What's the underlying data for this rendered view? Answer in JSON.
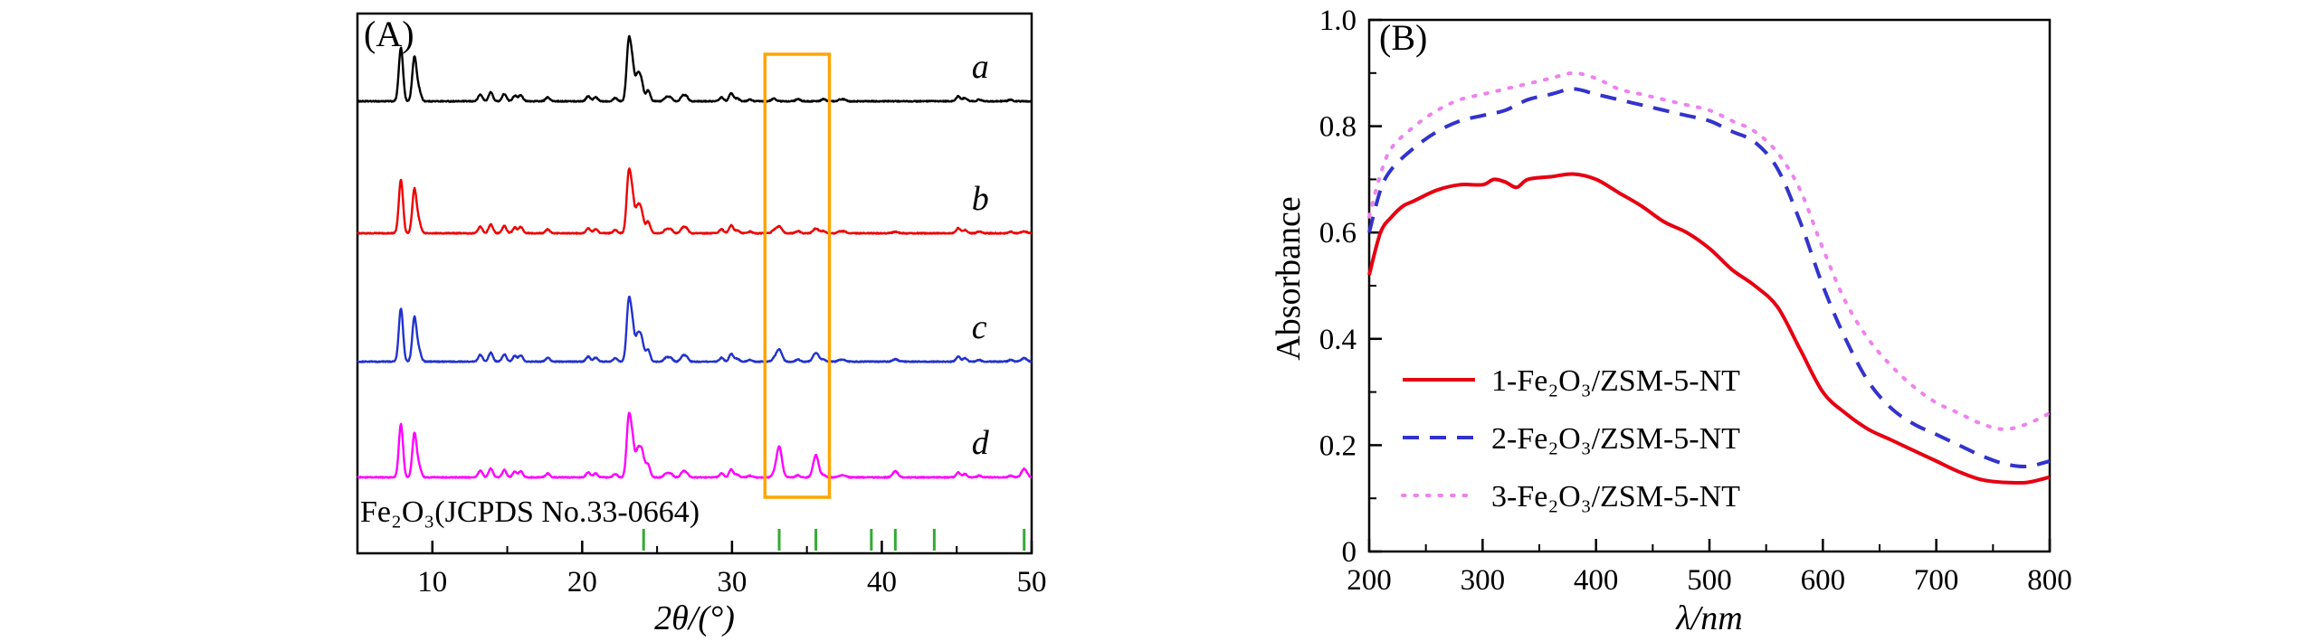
{
  "figure": {
    "background": "#ffffff",
    "description": "Two-panel scientific figure: (A) XRD patterns, (B) UV-Vis absorbance spectra"
  },
  "chart_data": [
    {
      "id": "A",
      "type": "line",
      "panel_label": "(A)",
      "xlabel": "2θ/(°)",
      "xlim": [
        5,
        50
      ],
      "xticks": [
        10,
        20,
        30,
        40,
        50
      ],
      "minor_xticks": [
        15,
        25,
        35,
        45
      ],
      "grid": false,
      "frame_color": "#000000",
      "series": [
        {
          "label": "a",
          "color": "#000000",
          "fe2o3_scale": 0.0
        },
        {
          "label": "b",
          "color": "#ee0000",
          "fe2o3_scale": 0.12
        },
        {
          "label": "c",
          "color": "#2233cc",
          "fe2o3_scale": 0.22
        },
        {
          "label": "d",
          "color": "#ff00ff",
          "fe2o3_scale": 0.55
        }
      ],
      "zsm5_peaks": [
        [
          7.9,
          0.95
        ],
        [
          8.8,
          0.78
        ],
        [
          9.1,
          0.2
        ],
        [
          13.2,
          0.12
        ],
        [
          13.9,
          0.16
        ],
        [
          14.8,
          0.13
        ],
        [
          15.5,
          0.1
        ],
        [
          15.9,
          0.11
        ],
        [
          17.7,
          0.07
        ],
        [
          20.4,
          0.09
        ],
        [
          20.9,
          0.07
        ],
        [
          22.2,
          0.06
        ],
        [
          23.1,
          1.0
        ],
        [
          23.35,
          0.6
        ],
        [
          23.7,
          0.42
        ],
        [
          23.95,
          0.34
        ],
        [
          24.4,
          0.2
        ],
        [
          25.6,
          0.07
        ],
        [
          25.9,
          0.07
        ],
        [
          26.7,
          0.09
        ],
        [
          26.95,
          0.08
        ],
        [
          29.3,
          0.07
        ],
        [
          29.95,
          0.14
        ],
        [
          30.35,
          0.05
        ],
        [
          31.2,
          0.03
        ],
        [
          32.8,
          0.05
        ],
        [
          34.4,
          0.04
        ],
        [
          36.1,
          0.04
        ],
        [
          37.2,
          0.03
        ],
        [
          37.5,
          0.03
        ],
        [
          45.1,
          0.09
        ],
        [
          45.55,
          0.06
        ],
        [
          46.5,
          0.03
        ],
        [
          48.6,
          0.03
        ]
      ],
      "fe2o3_peaks": [
        [
          24.1,
          0.3
        ],
        [
          33.15,
          1.0
        ],
        [
          35.6,
          0.72
        ],
        [
          40.9,
          0.2
        ],
        [
          49.5,
          0.28
        ]
      ],
      "reference_label": "Fe₂O₃(JCPDS No.33-0664)",
      "reference_ticks": [
        24.1,
        33.15,
        35.6,
        39.3,
        40.9,
        43.5,
        49.5
      ],
      "reference_tick_color": "#33aa33",
      "highlight_box": {
        "x_start": 32.2,
        "x_end": 36.5,
        "color": "#ffa500"
      }
    },
    {
      "id": "B",
      "type": "line",
      "panel_label": "(B)",
      "xlabel": "λ/nm",
      "ylabel": "Absorbance",
      "xlim": [
        200,
        800
      ],
      "ylim": [
        0,
        1.0
      ],
      "xticks": [
        200,
        300,
        400,
        500,
        600,
        700,
        800
      ],
      "yticks": [
        0,
        0.2,
        0.4,
        0.6,
        0.8,
        1.0
      ],
      "ytick_labels": [
        "0",
        "0.2",
        "0.4",
        "0.6",
        "0.8",
        "1.0"
      ],
      "legend_position": "lower-left",
      "frame_color": "#000000",
      "series": [
        {
          "name": "1-Fe₂O₃/ZSM-5-NT",
          "color": "#e60012",
          "line_style": "solid",
          "x": [
            200,
            210,
            220,
            230,
            240,
            260,
            280,
            300,
            310,
            320,
            330,
            340,
            360,
            380,
            400,
            420,
            440,
            460,
            480,
            500,
            520,
            540,
            560,
            580,
            600,
            620,
            640,
            660,
            680,
            700,
            720,
            740,
            760,
            780,
            800
          ],
          "y": [
            0.52,
            0.6,
            0.63,
            0.65,
            0.66,
            0.68,
            0.69,
            0.69,
            0.7,
            0.695,
            0.685,
            0.7,
            0.705,
            0.71,
            0.7,
            0.675,
            0.65,
            0.62,
            0.6,
            0.57,
            0.53,
            0.5,
            0.46,
            0.38,
            0.3,
            0.26,
            0.23,
            0.21,
            0.19,
            0.17,
            0.15,
            0.135,
            0.13,
            0.13,
            0.14
          ]
        },
        {
          "name": "2-Fe₂O₃/ZSM-5-NT",
          "color": "#3333cc",
          "line_style": "dashed",
          "x": [
            200,
            210,
            220,
            240,
            260,
            280,
            300,
            320,
            340,
            360,
            380,
            400,
            420,
            440,
            460,
            480,
            500,
            520,
            540,
            560,
            580,
            600,
            620,
            640,
            660,
            680,
            700,
            720,
            740,
            760,
            780,
            800
          ],
          "y": [
            0.6,
            0.68,
            0.72,
            0.76,
            0.79,
            0.81,
            0.82,
            0.83,
            0.85,
            0.86,
            0.87,
            0.86,
            0.85,
            0.84,
            0.83,
            0.82,
            0.81,
            0.79,
            0.77,
            0.72,
            0.62,
            0.5,
            0.4,
            0.32,
            0.27,
            0.24,
            0.22,
            0.2,
            0.18,
            0.165,
            0.16,
            0.17
          ]
        },
        {
          "name": "3-Fe₂O₃/ZSM-5-NT",
          "color": "#ee82ee",
          "line_style": "dotted",
          "x": [
            200,
            210,
            220,
            240,
            260,
            280,
            300,
            320,
            340,
            360,
            380,
            400,
            420,
            440,
            460,
            480,
            500,
            520,
            540,
            560,
            580,
            600,
            620,
            640,
            660,
            680,
            700,
            720,
            740,
            760,
            780,
            800
          ],
          "y": [
            0.63,
            0.71,
            0.76,
            0.8,
            0.83,
            0.85,
            0.86,
            0.87,
            0.88,
            0.89,
            0.9,
            0.89,
            0.87,
            0.86,
            0.85,
            0.84,
            0.83,
            0.81,
            0.79,
            0.75,
            0.68,
            0.57,
            0.47,
            0.4,
            0.35,
            0.31,
            0.28,
            0.26,
            0.24,
            0.23,
            0.24,
            0.26
          ]
        }
      ]
    }
  ]
}
